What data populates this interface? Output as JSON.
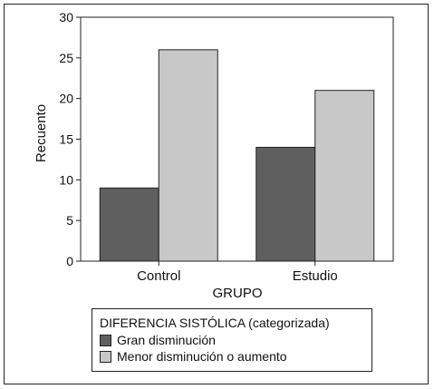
{
  "chart_data": {
    "type": "bar",
    "categories": [
      "Control",
      "Estudio"
    ],
    "series": [
      {
        "name": "Gran disminución",
        "values": [
          9,
          14
        ],
        "color": "#5f5f5f"
      },
      {
        "name": "Menor disminución o aumento",
        "values": [
          26,
          21
        ],
        "color": "#c8c8c8"
      }
    ],
    "xlabel": "GRUPO",
    "ylabel": "Recuento",
    "ylim": [
      0,
      30
    ],
    "yticks": [
      0,
      5,
      10,
      15,
      20,
      25,
      30
    ],
    "grid": false,
    "legend_title": "DIFERENCIA SISTÓLICA (categorizada)",
    "legend_position": "bottom"
  }
}
